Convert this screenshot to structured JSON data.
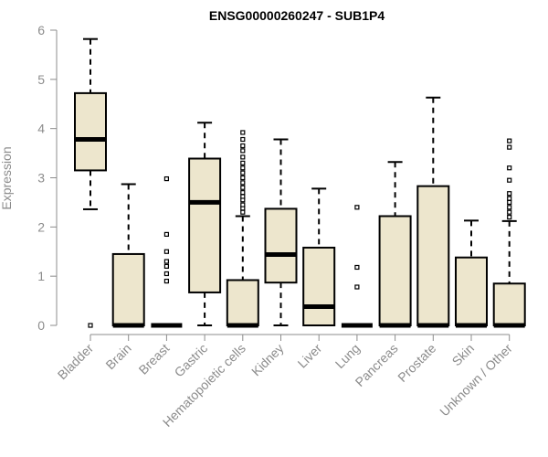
{
  "chart_data": {
    "type": "box",
    "title": "ENSG00000260247 - SUB1P4",
    "xlabel": "",
    "ylabel": "Expression",
    "ylim": [
      0,
      6
    ],
    "yticks": [
      0,
      1,
      2,
      3,
      4,
      5,
      6
    ],
    "grid": false,
    "box_fill": "#ede6cd",
    "categories": [
      "Bladder",
      "Brain",
      "Breast",
      "Gastric",
      "Hematopoietic cells",
      "Kidney",
      "Liver",
      "Lung",
      "Pancreas",
      "Prostate",
      "Skin",
      "Unknown / Other"
    ],
    "boxes": [
      {
        "q1": 3.15,
        "median": 3.78,
        "q3": 4.72,
        "whisker_low": 2.36,
        "whisker_high": 5.82,
        "outliers": [
          0
        ]
      },
      {
        "q1": 0,
        "median": 0,
        "q3": 1.45,
        "whisker_low": 0,
        "whisker_high": 2.87,
        "outliers": []
      },
      {
        "q1": 0,
        "median": 0,
        "q3": 0,
        "whisker_low": 0,
        "whisker_high": 0,
        "outliers": [
          0.9,
          1.05,
          1.2,
          1.3,
          1.5,
          1.85,
          2.98
        ]
      },
      {
        "q1": 0.67,
        "median": 2.5,
        "q3": 3.39,
        "whisker_low": 0,
        "whisker_high": 4.12,
        "outliers": []
      },
      {
        "q1": 0,
        "median": 0,
        "q3": 0.92,
        "whisker_low": 0,
        "whisker_high": 2.22,
        "outliers": [
          2.3,
          2.38,
          2.45,
          2.55,
          2.62,
          2.7,
          2.8,
          2.9,
          3.0,
          3.1,
          3.2,
          3.3,
          3.42,
          3.55,
          3.65,
          3.78,
          3.92
        ]
      },
      {
        "q1": 0.87,
        "median": 1.44,
        "q3": 2.37,
        "whisker_low": 0,
        "whisker_high": 3.78,
        "outliers": []
      },
      {
        "q1": 0,
        "median": 0.38,
        "q3": 1.58,
        "whisker_low": 0,
        "whisker_high": 2.78,
        "outliers": []
      },
      {
        "q1": 0,
        "median": 0,
        "q3": 0,
        "whisker_low": 0,
        "whisker_high": 0,
        "outliers": [
          0.78,
          1.18,
          2.4
        ]
      },
      {
        "q1": 0,
        "median": 0,
        "q3": 2.22,
        "whisker_low": 0,
        "whisker_high": 3.32,
        "outliers": []
      },
      {
        "q1": 0,
        "median": 0,
        "q3": 2.83,
        "whisker_low": 0,
        "whisker_high": 4.63,
        "outliers": []
      },
      {
        "q1": 0,
        "median": 0,
        "q3": 1.38,
        "whisker_low": 0,
        "whisker_high": 2.13,
        "outliers": []
      },
      {
        "q1": 0,
        "median": 0,
        "q3": 0.85,
        "whisker_low": 0,
        "whisker_high": 2.12,
        "outliers": [
          2.2,
          2.3,
          2.4,
          2.5,
          2.58,
          2.68,
          2.95,
          3.2,
          3.62,
          3.75
        ]
      }
    ]
  }
}
